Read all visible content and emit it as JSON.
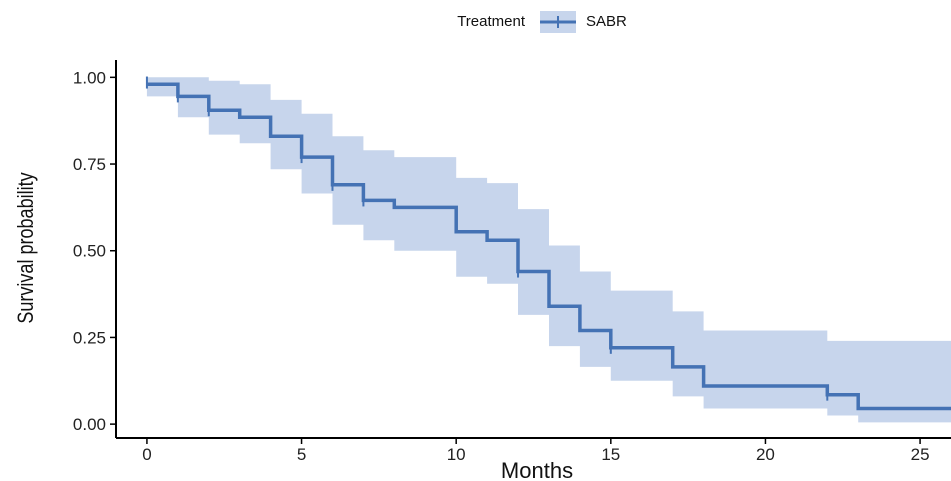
{
  "chart_data": {
    "type": "line",
    "subtype": "kaplan-meier",
    "xlabel": "Months",
    "ylabel": "Survival probability",
    "xlim": [
      -1,
      26
    ],
    "ylim": [
      -0.04,
      1.05
    ],
    "x_ticks": [
      0,
      5,
      10,
      15,
      20,
      25
    ],
    "x_tick_labels": [
      "0",
      "5",
      "10",
      "15",
      "20",
      "25"
    ],
    "y_ticks": [
      0,
      0.25,
      0.5,
      0.75,
      1
    ],
    "y_tick_labels": [
      "0.00",
      "0.25",
      "0.50",
      "0.75",
      "1.00"
    ],
    "legend": {
      "title": "Treatment",
      "position": "top-center"
    },
    "grid": false,
    "colors": {
      "line": "#4472b4",
      "band": "#c7d5ec",
      "axis": "#000000"
    },
    "series": [
      {
        "name": "SABR",
        "step": [
          [
            0,
            0.98
          ],
          [
            1,
            0.945
          ],
          [
            2,
            0.905
          ],
          [
            3,
            0.885
          ],
          [
            4,
            0.83
          ],
          [
            5,
            0.77
          ],
          [
            6,
            0.69
          ],
          [
            7,
            0.645
          ],
          [
            8,
            0.625
          ],
          [
            10,
            0.555
          ],
          [
            11,
            0.53
          ],
          [
            12,
            0.44
          ],
          [
            13,
            0.34
          ],
          [
            14,
            0.27
          ],
          [
            15,
            0.22
          ],
          [
            17,
            0.165
          ],
          [
            18,
            0.11
          ],
          [
            22,
            0.085
          ],
          [
            23,
            0.045
          ],
          [
            26,
            0.045
          ]
        ],
        "ci_upper": [
          [
            0,
            1.0
          ],
          [
            2,
            0.99
          ],
          [
            3,
            0.98
          ],
          [
            4,
            0.935
          ],
          [
            5,
            0.895
          ],
          [
            6,
            0.83
          ],
          [
            7,
            0.79
          ],
          [
            8,
            0.77
          ],
          [
            10,
            0.71
          ],
          [
            11,
            0.695
          ],
          [
            12,
            0.62
          ],
          [
            13,
            0.515
          ],
          [
            14,
            0.44
          ],
          [
            15,
            0.385
          ],
          [
            17,
            0.325
          ],
          [
            18,
            0.27
          ],
          [
            22,
            0.24
          ],
          [
            23,
            0.24
          ],
          [
            26,
            0.24
          ]
        ],
        "ci_lower": [
          [
            0,
            0.945
          ],
          [
            1,
            0.885
          ],
          [
            2,
            0.835
          ],
          [
            3,
            0.81
          ],
          [
            4,
            0.735
          ],
          [
            5,
            0.665
          ],
          [
            6,
            0.575
          ],
          [
            7,
            0.53
          ],
          [
            8,
            0.5
          ],
          [
            10,
            0.425
          ],
          [
            11,
            0.405
          ],
          [
            12,
            0.315
          ],
          [
            13,
            0.225
          ],
          [
            14,
            0.165
          ],
          [
            15,
            0.125
          ],
          [
            17,
            0.08
          ],
          [
            18,
            0.045
          ],
          [
            22,
            0.025
          ],
          [
            23,
            0.005
          ],
          [
            26,
            0.005
          ]
        ],
        "censored": [
          [
            0,
            0.985
          ],
          [
            1,
            0.945
          ],
          [
            2,
            0.905
          ],
          [
            5,
            0.77
          ],
          [
            6,
            0.69
          ],
          [
            7,
            0.645
          ],
          [
            12,
            0.44
          ],
          [
            15,
            0.22
          ],
          [
            22,
            0.085
          ]
        ]
      }
    ]
  }
}
